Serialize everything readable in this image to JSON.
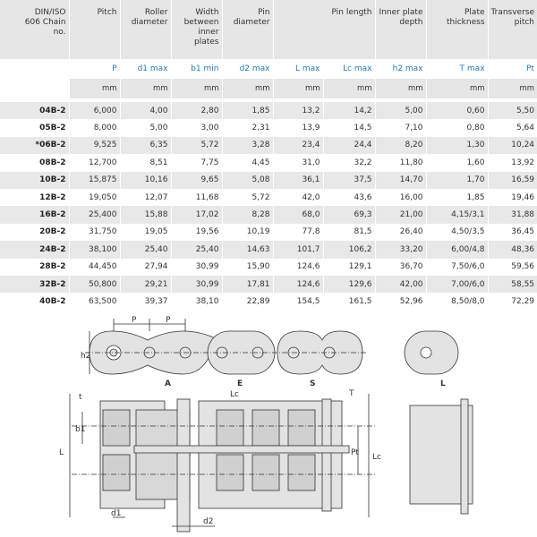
{
  "header": {
    "chain_no": "DIN/ISO 606 Chain no.",
    "pitch": "Pitch",
    "roller_diameter": "Roller diameter",
    "width_inner": "Width between inner plates",
    "pin_diameter": "Pin diameter",
    "pin_length": "Pin length",
    "inner_plate_depth": "Inner plate depth",
    "plate_thickness": "Plate thickness",
    "transverse_pitch": "Transverse pitch"
  },
  "symbols": [
    "P",
    "d1 max",
    "b1 min",
    "d2 max",
    "L max",
    "Lc max",
    "h2 max",
    "T max",
    "Pt"
  ],
  "units": [
    "mm",
    "mm",
    "mm",
    "mm",
    "mm",
    "mm",
    "mm",
    "mm",
    "mm"
  ],
  "rows": [
    [
      "04B-2",
      "6,000",
      "4,00",
      "2,80",
      "1,85",
      "13,2",
      "14,2",
      "5,00",
      "0,60",
      "5,50"
    ],
    [
      "05B-2",
      "8,000",
      "5,00",
      "3,00",
      "2,31",
      "13,9",
      "14,5",
      "7,10",
      "0,80",
      "5,64"
    ],
    [
      "*06B-2",
      "9,525",
      "6,35",
      "5,72",
      "3,28",
      "23,4",
      "24,4",
      "8,20",
      "1,30",
      "10,24"
    ],
    [
      "08B-2",
      "12,700",
      "8,51",
      "7,75",
      "4,45",
      "31,0",
      "32,2",
      "11,80",
      "1,60",
      "13,92"
    ],
    [
      "10B-2",
      "15,875",
      "10,16",
      "9,65",
      "5,08",
      "36,1",
      "37,5",
      "14,70",
      "1,70",
      "16,59"
    ],
    [
      "12B-2",
      "19,050",
      "12,07",
      "11,68",
      "5,72",
      "42,0",
      "43,6",
      "16,00",
      "1,85",
      "19,46"
    ],
    [
      "16B-2",
      "25,400",
      "15,88",
      "17,02",
      "8,28",
      "68,0",
      "69,3",
      "21,00",
      "4,15/3,1",
      "31,88"
    ],
    [
      "20B-2",
      "31,750",
      "19,05",
      "19,56",
      "10,19",
      "77,8",
      "81,5",
      "26,40",
      "4,50/3,5",
      "36,45"
    ],
    [
      "24B-2",
      "38,100",
      "25,40",
      "25,40",
      "14,63",
      "101,7",
      "106,2",
      "33,20",
      "6,00/4,8",
      "48,36"
    ],
    [
      "28B-2",
      "44,450",
      "27,94",
      "30,99",
      "15,90",
      "124,6",
      "129,1",
      "36,70",
      "7,50/6,0",
      "59,56"
    ],
    [
      "32B-2",
      "50,800",
      "29,21",
      "30,99",
      "17,81",
      "124,6",
      "129,6",
      "42,00",
      "7,00/6,0",
      "58,55"
    ],
    [
      "40B-2",
      "63,500",
      "39,37",
      "38,10",
      "22,89",
      "154,5",
      "161,5",
      "52,96",
      "8,50/8,0",
      "72,29"
    ]
  ],
  "diagram": {
    "labels": {
      "p1": "P",
      "p2": "P",
      "h2": "h2",
      "a": "A",
      "e": "E",
      "s": "S",
      "L": "L",
      "t": "t",
      "b1": "b1",
      "lc": "Lc",
      "T": "T",
      "pt": "Pt",
      "lc2": "Lc",
      "d1": "d1",
      "d2": "d2",
      "side": "L"
    }
  },
  "colors": {
    "symbol": "#1f7ac0",
    "stripe": "#e8e8e8",
    "header_bg": "#e6e6e6"
  }
}
